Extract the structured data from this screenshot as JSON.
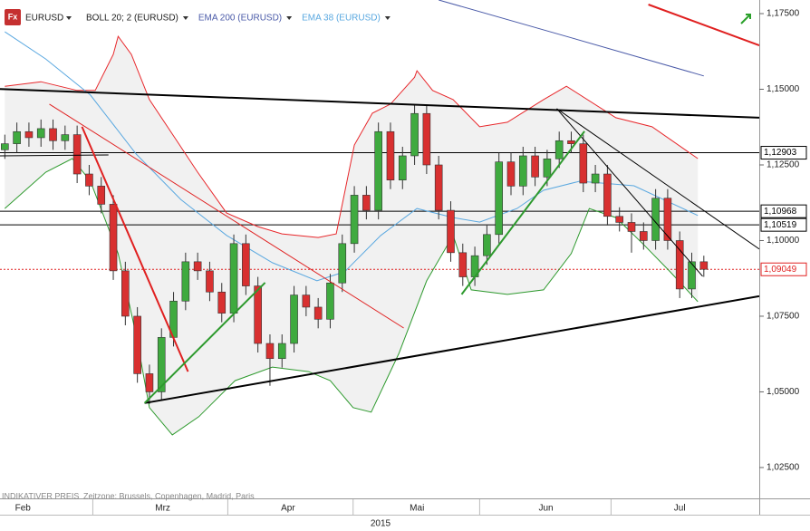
{
  "chart_data": {
    "type": "candlestick",
    "symbol": "EURUSD",
    "note": "INDIKATIVER PREIS",
    "timezone": "Zeitzone: Brussels, Copenhagen, Madrid, Paris",
    "year_label": "2015",
    "xlim": [
      -0.4,
      62.6
    ],
    "ylim": [
      1.0148,
      1.1795
    ],
    "yticks": [
      {
        "value": 1.175,
        "label": "1,17500"
      },
      {
        "value": 1.15,
        "label": "1,15000"
      },
      {
        "value": 1.125,
        "label": "1,12500"
      },
      {
        "value": 1.1,
        "label": "1,10000"
      },
      {
        "value": 1.075,
        "label": "1,07500"
      },
      {
        "value": 1.05,
        "label": "1,05000"
      },
      {
        "value": 1.025,
        "label": "1,02500"
      }
    ],
    "xticks": [
      {
        "value": 1.5,
        "label": "Feb"
      },
      {
        "value": 13.1,
        "label": "Mrz"
      },
      {
        "value": 23.5,
        "label": "Apr"
      },
      {
        "value": 34.2,
        "label": "Mai"
      },
      {
        "value": 44.9,
        "label": "Jun"
      },
      {
        "value": 56,
        "label": "Jul"
      }
    ],
    "x_separators": [
      7.3,
      18.5,
      28.9,
      39.4,
      50.3
    ],
    "up_color": "#3faa3f",
    "down_color": "#d83030",
    "band_fill": "#f1f1f1",
    "x": [
      0,
      1,
      2,
      3,
      4,
      5,
      6,
      7,
      8,
      9,
      10,
      11,
      12,
      13,
      14,
      15,
      16,
      17,
      18,
      19,
      20,
      21,
      22,
      23,
      24,
      25,
      26,
      27,
      28,
      29,
      30,
      31,
      32,
      33,
      34,
      35,
      36,
      37,
      38,
      39,
      40,
      41,
      42,
      43,
      44,
      45,
      46,
      47,
      48,
      49,
      50,
      51,
      52,
      53,
      54,
      55,
      56,
      57,
      58
    ],
    "open": [
      1.13,
      1.132,
      1.136,
      1.134,
      1.137,
      1.133,
      1.135,
      1.122,
      1.118,
      1.112,
      1.09,
      1.075,
      1.056,
      1.05,
      1.068,
      1.08,
      1.093,
      1.09,
      1.083,
      1.076,
      1.099,
      1.085,
      1.066,
      1.061,
      1.066,
      1.082,
      1.078,
      1.074,
      1.086,
      1.099,
      1.115,
      1.11,
      1.136,
      1.12,
      1.128,
      1.142,
      1.125,
      1.11,
      1.096,
      1.088,
      1.095,
      1.102,
      1.126,
      1.118,
      1.128,
      1.121,
      1.127,
      1.133,
      1.132,
      1.119,
      1.122,
      1.108,
      1.106,
      1.103,
      1.1,
      1.114,
      1.1,
      1.084,
      1.093
    ],
    "high": [
      1.135,
      1.139,
      1.139,
      1.14,
      1.14,
      1.138,
      1.138,
      1.125,
      1.121,
      1.115,
      1.093,
      1.078,
      1.059,
      1.071,
      1.083,
      1.096,
      1.096,
      1.093,
      1.086,
      1.102,
      1.102,
      1.088,
      1.069,
      1.069,
      1.085,
      1.085,
      1.081,
      1.089,
      1.102,
      1.118,
      1.118,
      1.139,
      1.139,
      1.131,
      1.145,
      1.145,
      1.128,
      1.113,
      1.099,
      1.098,
      1.105,
      1.129,
      1.129,
      1.131,
      1.131,
      1.13,
      1.136,
      1.136,
      1.135,
      1.125,
      1.125,
      1.111,
      1.109,
      1.106,
      1.117,
      1.117,
      1.103,
      1.096,
      1.095
    ],
    "low": [
      1.127,
      1.129,
      1.131,
      1.131,
      1.13,
      1.13,
      1.119,
      1.115,
      1.109,
      1.087,
      1.072,
      1.053,
      1.046,
      1.047,
      1.065,
      1.077,
      1.087,
      1.08,
      1.073,
      1.073,
      1.082,
      1.063,
      1.052,
      1.058,
      1.063,
      1.075,
      1.071,
      1.071,
      1.083,
      1.096,
      1.107,
      1.107,
      1.117,
      1.117,
      1.125,
      1.122,
      1.107,
      1.093,
      1.085,
      1.085,
      1.092,
      1.099,
      1.115,
      1.115,
      1.118,
      1.118,
      1.124,
      1.129,
      1.116,
      1.116,
      1.105,
      1.103,
      1.096,
      1.097,
      1.097,
      1.097,
      1.081,
      1.081,
      1.088
    ],
    "close": [
      1.132,
      1.136,
      1.134,
      1.137,
      1.133,
      1.135,
      1.122,
      1.118,
      1.112,
      1.09,
      1.075,
      1.056,
      1.05,
      1.068,
      1.08,
      1.093,
      1.09,
      1.083,
      1.076,
      1.099,
      1.085,
      1.066,
      1.061,
      1.066,
      1.082,
      1.078,
      1.074,
      1.086,
      1.099,
      1.115,
      1.11,
      1.136,
      1.12,
      1.128,
      1.142,
      1.125,
      1.11,
      1.096,
      1.088,
      1.095,
      1.102,
      1.126,
      1.118,
      1.128,
      1.121,
      1.127,
      1.133,
      1.132,
      1.119,
      1.122,
      1.108,
      1.106,
      1.103,
      1.1,
      1.114,
      1.1,
      1.084,
      1.093,
      1.0905
    ],
    "series": [
      {
        "name": "BOLL 20; 2 (EURUSD)",
        "color": "#222222",
        "upper_color": "#e8262a",
        "lower_color": "#2e9a2e",
        "upper": {
          "x": [
            0,
            3,
            6,
            7.5,
            9,
            9.4,
            10.5,
            12,
            14,
            16,
            18.4,
            21,
            23,
            26,
            27.5,
            29,
            30.5,
            32,
            34,
            34.2,
            35.5,
            37.2,
            39.4,
            41.7,
            44.7,
            46.6,
            50.7,
            53.7,
            57.5
          ],
          "values": [
            1.151,
            1.1525,
            1.1496,
            1.1496,
            1.1615,
            1.1675,
            1.1615,
            1.1466,
            1.1346,
            1.1226,
            1.1091,
            1.1046,
            1.1022,
            1.101,
            1.1022,
            1.1316,
            1.1421,
            1.1451,
            1.154,
            1.1561,
            1.1496,
            1.1466,
            1.1376,
            1.1391,
            1.1466,
            1.151,
            1.1406,
            1.1376,
            1.1271
          ]
        },
        "lower": {
          "x": [
            0,
            3.4,
            5.6,
            7.1,
            9.4,
            10.9,
            12,
            13.9,
            16.1,
            19.1,
            22.2,
            25.2,
            27,
            28.9,
            30.4,
            32.7,
            35,
            37.2,
            38.7,
            41.7,
            44.7,
            47,
            48.5,
            50.7,
            53,
            55.2,
            57.5
          ],
          "values": [
            1.1106,
            1.1226,
            1.1271,
            1.1196,
            1.0957,
            1.0687,
            1.0448,
            1.0358,
            1.0418,
            1.0537,
            1.0582,
            1.0567,
            1.0537,
            1.0448,
            1.0433,
            1.0627,
            1.0867,
            1.1017,
            1.0837,
            1.0822,
            1.0837,
            1.0957,
            1.1106,
            1.1076,
            1.0987,
            1.0897,
            1.0798
          ]
        }
      },
      {
        "name": "EMA 200 (EURUSD)",
        "color": "#4a5aa8",
        "x": [
          36,
          47,
          58
        ],
        "values": [
          1.1795,
          1.167,
          1.1544
        ]
      },
      {
        "name": "EMA 38 (EURUSD)",
        "color": "#5aa8e0",
        "x": [
          0,
          3.4,
          7.1,
          10.9,
          14.6,
          18.4,
          22.2,
          25.9,
          28.2,
          31.2,
          34.2,
          37.2,
          39.4,
          42.5,
          44.7,
          47.7,
          52.2,
          57.5
        ],
        "values": [
          1.169,
          1.16,
          1.1481,
          1.1286,
          1.1136,
          1.1017,
          1.0927,
          1.0867,
          1.0897,
          1.1017,
          1.1106,
          1.1076,
          1.1061,
          1.1106,
          1.1166,
          1.1196,
          1.1181,
          1.1083
        ]
      }
    ],
    "levels": [
      {
        "value": 1.12903,
        "label": "1,12903",
        "color": "#000000",
        "dashed": false
      },
      {
        "value": 1.10968,
        "label": "1,10968",
        "color": "#000000",
        "dashed": false
      },
      {
        "value": 1.10519,
        "label": "1,10519",
        "color": "#000000",
        "dashed": false
      },
      {
        "value": 1.09049,
        "label": "1,09049",
        "color": "#e02020",
        "dashed": true
      }
    ],
    "drawings": [
      {
        "color": "#000000",
        "width": 2,
        "x": [
          -0.4,
          62.6
        ],
        "values": [
          1.1501,
          1.1406
        ]
      },
      {
        "color": "#000000",
        "width": 2,
        "x": [
          11.6,
          62.6
        ],
        "values": [
          1.0463,
          1.0816
        ]
      },
      {
        "color": "#000000",
        "width": 1,
        "x": [
          -0.4,
          8.6
        ],
        "values": [
          1.128,
          1.1283
        ]
      },
      {
        "color": "#000000",
        "width": 1,
        "x": [
          45.8,
          62.6
        ],
        "values": [
          1.1436,
          1.0972
        ]
      },
      {
        "color": "#000000",
        "width": 1,
        "x": [
          45.8,
          57.9
        ],
        "values": [
          1.1436,
          1.0882
        ]
      },
      {
        "color": "#e02020",
        "width": 2,
        "x": [
          6.4,
          15.2
        ],
        "values": [
          1.1376,
          1.0567
        ]
      },
      {
        "color": "#e02020",
        "width": 1,
        "x": [
          3.7,
          33.1
        ],
        "values": [
          1.1451,
          1.0711
        ]
      },
      {
        "color": "#e02020",
        "width": 2,
        "x": [
          53.4,
          62.6
        ],
        "values": [
          1.178,
          1.1645
        ]
      },
      {
        "color": "#2e9a2e",
        "width": 2,
        "x": [
          11.6,
          21.6
        ],
        "values": [
          1.0463,
          1.0861
        ]
      },
      {
        "color": "#2e9a2e",
        "width": 2,
        "x": [
          37.9,
          48.1
        ],
        "values": [
          1.0822,
          1.1361
        ]
      }
    ]
  }
}
